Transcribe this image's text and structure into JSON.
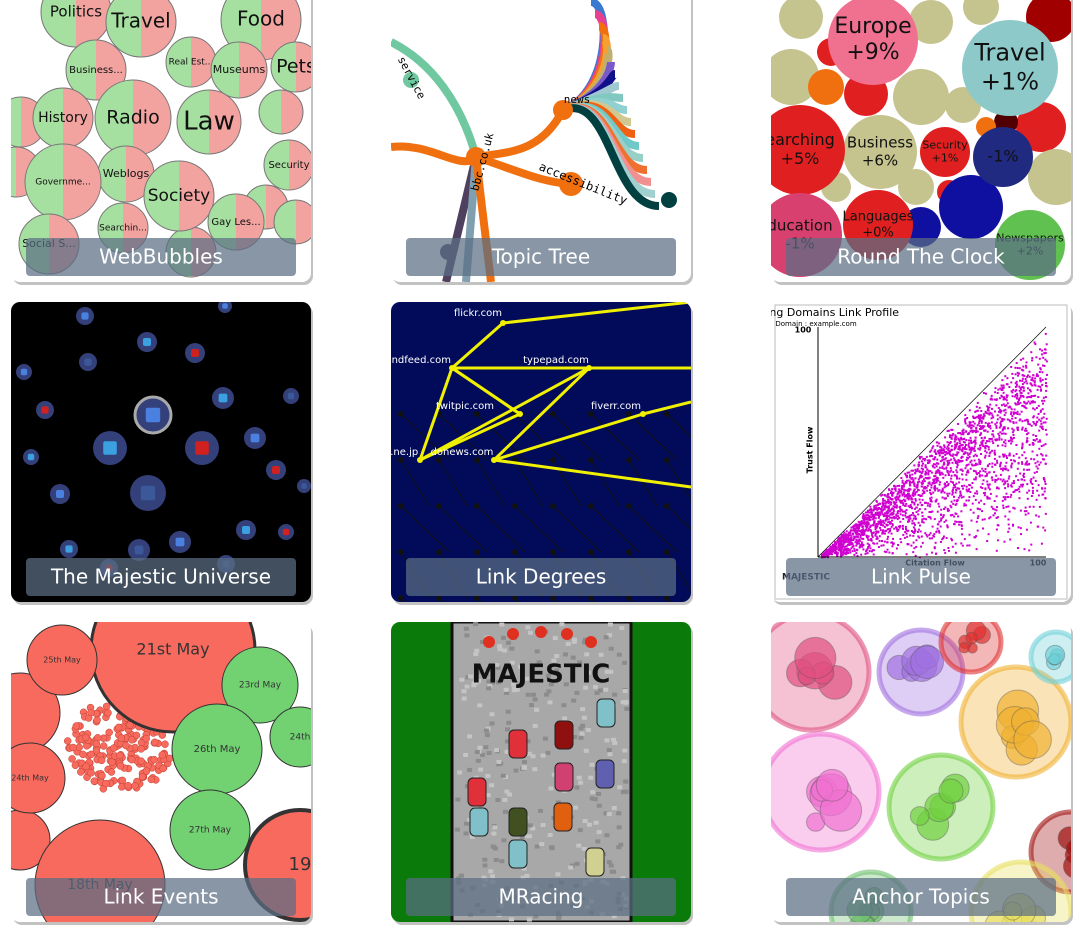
{
  "tiles": [
    {
      "title": "WebBubbles",
      "texts": [
        "Politics",
        "Travel",
        "Food",
        "Business...",
        "Real Est...",
        "Museums",
        "Pets",
        "History",
        "Radio",
        "Law",
        "Weblogs",
        "Society",
        "Governme...",
        "Security",
        "Social S...",
        "Searchin...",
        "Gay Les..."
      ]
    },
    {
      "title": "Topic Tree",
      "texts": [
        "bbc.co.uk",
        "accessibility",
        "service",
        "news"
      ]
    },
    {
      "title": "Round The Clock",
      "bubbles": [
        {
          "name": "Europe",
          "change": "+9%"
        },
        {
          "name": "Travel",
          "change": "+1%"
        },
        {
          "name": "Business",
          "change": "+6%"
        },
        {
          "name": "Security",
          "change": "+1%"
        },
        {
          "change": "-1%"
        },
        {
          "name": "earching",
          "change": "+5%"
        },
        {
          "name": "Languages",
          "change": "+0%"
        },
        {
          "name": "ducation",
          "change": "-1%"
        },
        {
          "name": "Newspapers",
          "change": "+2%"
        }
      ]
    },
    {
      "title": "The Majestic Universe"
    },
    {
      "title": "Link Degrees",
      "texts": [
        "flickr.com",
        "friendfeed.com",
        "typepad.com",
        "twitpic.com",
        "fiverr.com",
        "goo.ne.jp",
        "donews.com"
      ]
    },
    {
      "title": "Link Pulse",
      "texts": [
        "Referring Domains Link Profile",
        "Domain : example.com",
        "100",
        "Trust Flow",
        "Citation Flow",
        "100",
        "MAJESTIC"
      ]
    },
    {
      "title": "Link Events",
      "texts": [
        "21st May",
        "25th May",
        "23rd May",
        "26th May",
        "24th",
        "24th May",
        "27th May",
        "18th May",
        "19"
      ]
    },
    {
      "title": "MRacing",
      "texts": [
        "MAJESTIC"
      ]
    },
    {
      "title": "Anchor Topics"
    }
  ]
}
